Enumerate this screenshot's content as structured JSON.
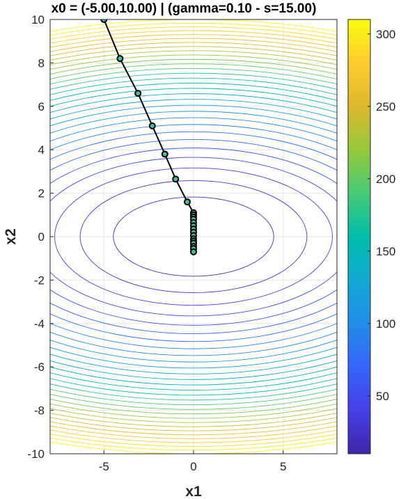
{
  "chart_data": {
    "type": "contour",
    "title": "x0 = (-5.00,10.00) | (gamma=0.10 - s=15.00)",
    "xlabel": "x1",
    "ylabel": "x2",
    "xlim": [
      -8,
      8
    ],
    "ylim": [
      -10,
      10
    ],
    "x_ticks": [
      "-5",
      "0",
      "5"
    ],
    "x_tick_values": [
      -5,
      0,
      5
    ],
    "y_ticks": [
      "-10",
      "-8",
      "-6",
      "-4",
      "-2",
      "0",
      "2",
      "4",
      "6",
      "8",
      "10"
    ],
    "y_tick_values": [
      -10,
      -8,
      -6,
      -4,
      -2,
      0,
      2,
      4,
      6,
      8,
      10
    ],
    "grid": true,
    "colormap": "parula",
    "colorbar": {
      "range": [
        10,
        310
      ],
      "ticks": [
        "50",
        "100",
        "150",
        "200",
        "250",
        "300"
      ],
      "tick_values": [
        50,
        100,
        150,
        200,
        250,
        300
      ],
      "location": "right"
    },
    "contour_levels": {
      "start": 10,
      "step": 10,
      "end": 310
    },
    "function": "f(x1,x2) = 0.5*x1^2 + 3*x2^2 + 10",
    "path": {
      "x1": [
        -5.0,
        -4.1,
        -3.1,
        -2.3,
        -1.6,
        -1.0,
        -0.35,
        0.0,
        0.0,
        0.0,
        0.0,
        0.0,
        0.0,
        0.0,
        0.0,
        0.0,
        0.0,
        0.0,
        0.0,
        0.0,
        0.0,
        0.0
      ],
      "x2": [
        10.0,
        8.2,
        6.6,
        5.1,
        3.8,
        2.65,
        1.6,
        1.1,
        1.0,
        0.9,
        0.8,
        0.65,
        0.5,
        0.35,
        0.2,
        0.05,
        -0.1,
        -0.2,
        -0.3,
        -0.45,
        -0.55,
        -0.7
      ],
      "line_color": "#000000",
      "marker_edge": "#000000",
      "marker_face": "#3fbfa0"
    }
  }
}
